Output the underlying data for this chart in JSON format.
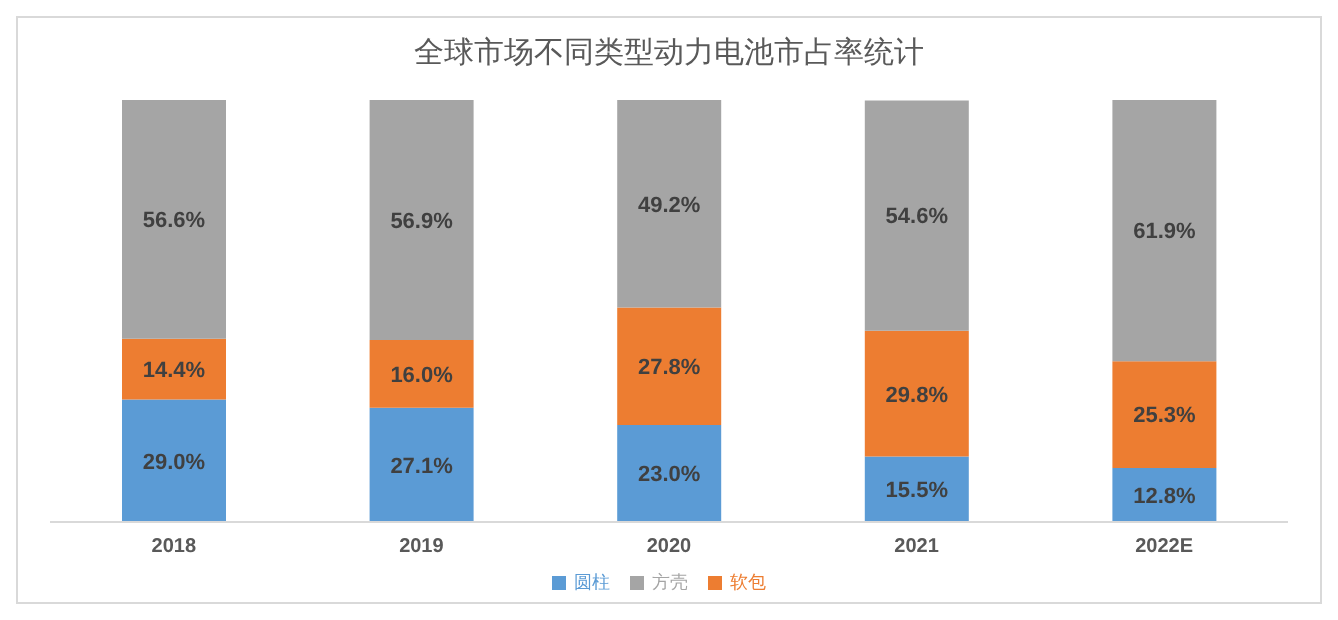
{
  "chart_data": {
    "type": "bar",
    "title": "全球市场不同类型动力电池市占率统计",
    "categories": [
      "2018",
      "2019",
      "2020",
      "2021",
      "2022E"
    ],
    "stacked": true,
    "legend": "bottom",
    "grid": false,
    "series": [
      {
        "name": "圆柱",
        "color": "#5b9bd5",
        "values": [
          29.0,
          27.1,
          23.0,
          15.5,
          12.8
        ],
        "value_labels": [
          "29.0%",
          "27.1%",
          "23.0%",
          "15.5%",
          "12.8%"
        ]
      },
      {
        "name": "软包",
        "color": "#ed7d31",
        "values": [
          14.4,
          16.0,
          27.8,
          29.8,
          25.3
        ],
        "value_labels": [
          "14.4%",
          "16.0%",
          "27.8%",
          "29.8%",
          "25.3%"
        ]
      },
      {
        "name": "方壳",
        "color": "#a5a5a5",
        "values": [
          56.6,
          56.9,
          49.2,
          54.6,
          61.9
        ],
        "value_labels": [
          "56.6%",
          "56.9%",
          "49.2%",
          "54.6%",
          "61.9%"
        ]
      }
    ]
  }
}
